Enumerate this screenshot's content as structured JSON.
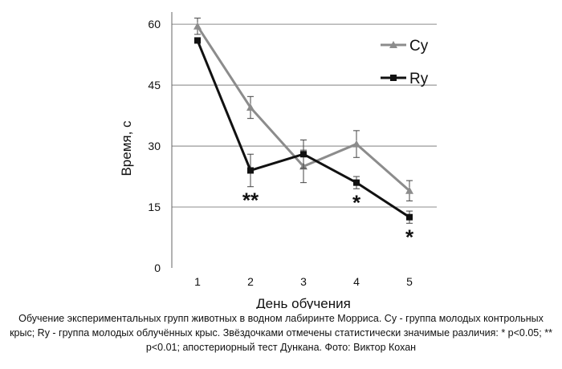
{
  "chart_data": {
    "type": "line",
    "title": "",
    "xlabel": "День обучения",
    "ylabel": "Время, с",
    "categories": [
      "1",
      "2",
      "3",
      "4",
      "5"
    ],
    "ylim": [
      0,
      63
    ],
    "yticks": [
      "0",
      "15",
      "30",
      "45",
      "60"
    ],
    "grid": "horizontal",
    "legend_position": "top-right",
    "series": [
      {
        "name": "Cy",
        "color": "#8c8c8c",
        "marker": "triangle",
        "values": [
          59.5,
          39.5,
          25,
          30.5,
          19
        ],
        "errors": [
          2,
          2.7,
          4,
          3.3,
          2.5
        ]
      },
      {
        "name": "Ry",
        "color": "#111111",
        "marker": "square",
        "values": [
          56,
          24,
          28,
          21,
          12.5
        ],
        "errors": [
          0,
          4,
          3.5,
          1.5,
          1.5
        ]
      }
    ],
    "annotations": [
      {
        "category": "2",
        "text": "**"
      },
      {
        "category": "4",
        "text": "*"
      },
      {
        "category": "5",
        "text": "*"
      }
    ]
  },
  "caption": "Обучение экспериментальных групп животных в водном лабиринте Морриса. Cy - группа молодых контрольных крыс; Ry - группа молодых облучённых крыс. Звёздочками отмечены статистически значимые различия: * p<0.05; ** p<0.01; апостериорный тест Дункана. Фото: Виктор Кохан"
}
